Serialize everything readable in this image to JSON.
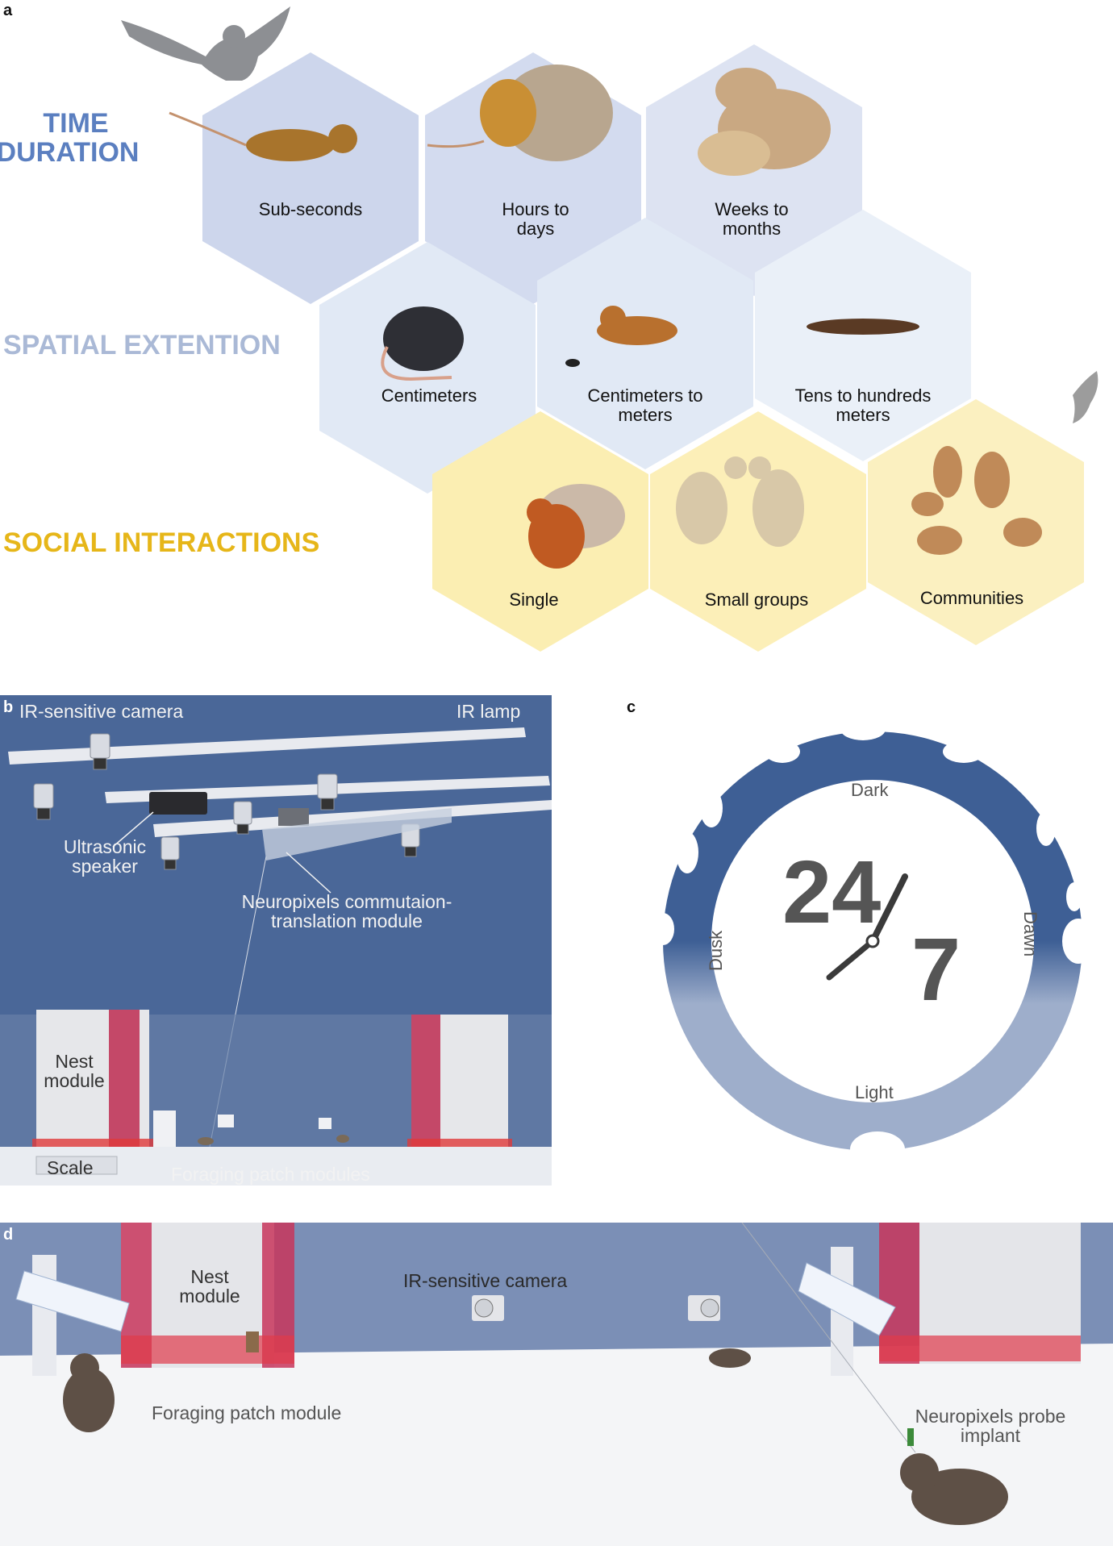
{
  "panel_a": {
    "letter": "a",
    "rows": {
      "time": {
        "title_line1": "TIME",
        "title_line2": "DURATION",
        "color": "#5b7fc0"
      },
      "space": {
        "title": "SPATIAL EXTENTION",
        "color": "#aab9d6"
      },
      "social": {
        "title": "SOCIAL INTERACTIONS",
        "color": "#e6b619"
      }
    },
    "hexagons": [
      {
        "line1": "Sub-seconds",
        "line2": ""
      },
      {
        "line1": "Hours to",
        "line2": "days"
      },
      {
        "line1": "Weeks to",
        "line2": "months"
      },
      {
        "line1": "Centimeters",
        "line2": ""
      },
      {
        "line1": "Centimeters to",
        "line2": "meters"
      },
      {
        "line1": "Tens to hundreds",
        "line2": "meters"
      },
      {
        "line1": "Single",
        "line2": ""
      },
      {
        "line1": "Small groups",
        "line2": ""
      },
      {
        "line1": "Communities",
        "line2": ""
      }
    ],
    "colors": {
      "time_hex": "#cdd6ec",
      "space_hex": "#e1e9f5",
      "social_hex": "#fbeeb2"
    }
  },
  "panel_b": {
    "letter": "b",
    "labels": {
      "camera": "IR-sensitive camera",
      "lamp": "IR lamp",
      "speaker_line1": "Ultrasonic",
      "speaker_line2": "speaker",
      "neuropixels_line1": "Neuropixels commutaion-",
      "neuropixels_line2": "translation module",
      "nest_line1": "Nest",
      "nest_line2": "module",
      "scale": "Scale",
      "foraging": "Foraging patch modules"
    },
    "colors": {
      "background": "#4a6798",
      "nest_red": "#c0365a"
    }
  },
  "panel_c": {
    "letter": "c",
    "center_24": "24",
    "center_7": "7",
    "labels": {
      "top": "Dark",
      "bottom": "Light",
      "left": "Dusk",
      "right": "Dawn"
    },
    "colors": {
      "ring_dark": "#3e5f95",
      "ring_light": "#9eaecb"
    }
  },
  "panel_d": {
    "letter": "d",
    "labels": {
      "nest_line1": "Nest",
      "nest_line2": "module",
      "camera": "IR-sensitive camera",
      "foraging": "Foraging patch module",
      "probe_line1": "Neuropixels probe",
      "probe_line2": "implant"
    },
    "colors": {
      "wall": "#7b8fb6",
      "floor": "#f4f5f7"
    }
  }
}
